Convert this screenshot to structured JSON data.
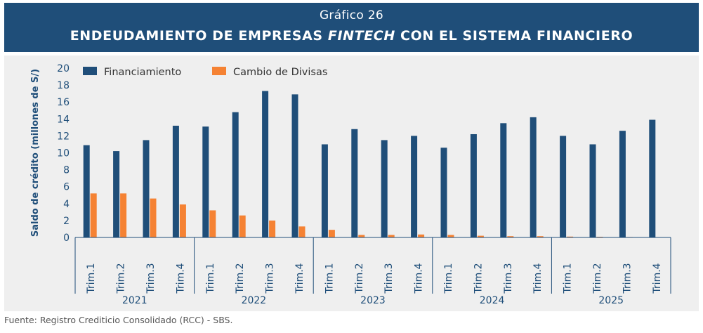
{
  "header": {
    "supertitle": "Gráfico 26",
    "title_pre": "ENDEUDAMIENTO DE EMPRESAS ",
    "title_em": "FINTECH",
    "title_post": " CON EL SISTEMA FINANCIERO"
  },
  "colors": {
    "header_bg": "#1f4e79",
    "panel_bg": "#efefef",
    "financiamiento": "#1f4e79",
    "cambio": "#f58233",
    "axis": "#1f4e79"
  },
  "chart_data": {
    "type": "bar",
    "title": "ENDEUDAMIENTO DE EMPRESAS FINTECH CON EL SISTEMA FINANCIERO",
    "xlabel": "",
    "ylabel": "Saldo de crédito (millones de S/)",
    "ylim": [
      0,
      20
    ],
    "yticks": [
      0,
      2,
      4,
      6,
      8,
      10,
      12,
      14,
      16,
      18,
      20
    ],
    "grid": false,
    "legend_position": "top-left",
    "groups": [
      {
        "label": "2021",
        "quarters": [
          "Trim.1",
          "Trim.2",
          "Trim.3",
          "Trim.4"
        ]
      },
      {
        "label": "2022",
        "quarters": [
          "Trim.1",
          "Trim.2",
          "Trim.3",
          "Trim.4"
        ]
      },
      {
        "label": "2023",
        "quarters": [
          "Trim.1",
          "Trim.2",
          "Trim.3",
          "Trim.4"
        ]
      },
      {
        "label": "2024",
        "quarters": [
          "Trim.1",
          "Trim.2",
          "Trim.3",
          "Trim.4"
        ]
      },
      {
        "label": "2025",
        "quarters": [
          "Trim.1",
          "Trim.2",
          "Trim.3",
          "Trim.4"
        ]
      }
    ],
    "series": [
      {
        "name": "Financiamiento",
        "values": [
          10.9,
          10.2,
          11.5,
          13.2,
          13.1,
          14.8,
          17.3,
          16.9,
          11.0,
          12.8,
          11.5,
          12.0,
          10.6,
          12.2,
          13.5,
          14.2,
          12.0,
          11.0,
          12.6,
          13.9
        ]
      },
      {
        "name": "Cambio de Divisas",
        "values": [
          5.2,
          5.2,
          4.6,
          3.9,
          3.2,
          2.6,
          2.0,
          1.3,
          0.9,
          0.3,
          0.3,
          0.35,
          0.3,
          0.2,
          0.15,
          0.15,
          0.1,
          0.08,
          0.05,
          0.04
        ]
      }
    ]
  },
  "footer": {
    "source": "Fuente: Registro Crediticio Consolidado (RCC) - SBS."
  }
}
